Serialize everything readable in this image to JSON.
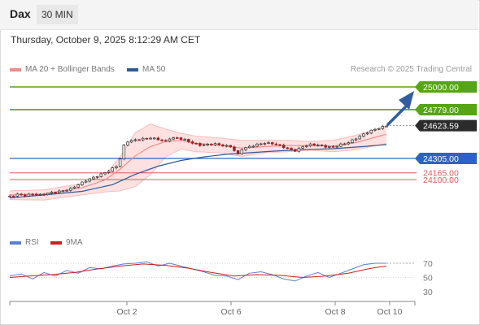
{
  "header": {
    "symbol": "Dax",
    "timeframe": "30 MIN"
  },
  "datetime": "Thursday, October 9, 2025 8:12:29 AM CET",
  "legend": {
    "ma20_label": "MA 20 + Bollinger Bands",
    "ma50_label": "MA 50",
    "rsi_label": "RSI",
    "ma9_label": "9MA"
  },
  "research": "Research © 2025 Trading Central",
  "colors": {
    "green": "#55a516",
    "blue": "#2d63c8",
    "red": "#e05a5a",
    "current": "#2b2b2b",
    "arrow": "#2f5d9e",
    "band": "#fde1e1",
    "candle_up": "#2a2a2a",
    "candle_down": "#9a2020",
    "rsi": "#5a7fd6",
    "ma9": "#d01c1c"
  },
  "chart_data": [
    {
      "type": "candlestick",
      "price_range": [
        23900,
        25050
      ],
      "levels": [
        {
          "value": 25000.0,
          "label": "25000.00",
          "kind": "resistance"
        },
        {
          "value": 24779.0,
          "label": "24779.00",
          "kind": "resistance"
        },
        {
          "value": 24623.59,
          "label": "24623.59",
          "kind": "current"
        },
        {
          "value": 24305.0,
          "label": "24305.00",
          "kind": "support"
        },
        {
          "value": 24165.0,
          "label": "24165.00",
          "kind": "support"
        },
        {
          "value": 24100.0,
          "label": "24100.00",
          "kind": "support"
        }
      ],
      "x_ticks": [
        "Oct 2",
        "Oct 6",
        "Oct 8",
        "Oct 10"
      ],
      "close_path": [
        [
          1,
          23935
        ],
        [
          3,
          23955
        ],
        [
          5,
          23945
        ],
        [
          7,
          23960
        ],
        [
          9,
          23950
        ],
        [
          11,
          23965
        ],
        [
          13,
          23980
        ],
        [
          15,
          23990
        ],
        [
          17,
          24010
        ],
        [
          19,
          24050
        ],
        [
          21,
          24090
        ],
        [
          23,
          24120
        ],
        [
          25,
          24150
        ],
        [
          27,
          24185
        ],
        [
          29,
          24230
        ],
        [
          30,
          24300
        ],
        [
          31,
          24430
        ],
        [
          32,
          24470
        ],
        [
          34,
          24485
        ],
        [
          36,
          24495
        ],
        [
          38,
          24505
        ],
        [
          40,
          24490
        ],
        [
          42,
          24470
        ],
        [
          43,
          24500
        ],
        [
          45,
          24505
        ],
        [
          47,
          24485
        ],
        [
          49,
          24455
        ],
        [
          51,
          24435
        ],
        [
          53,
          24440
        ],
        [
          55,
          24445
        ],
        [
          57,
          24430
        ],
        [
          59,
          24420
        ],
        [
          61,
          24345
        ],
        [
          62,
          24395
        ],
        [
          64,
          24420
        ],
        [
          66,
          24440
        ],
        [
          68,
          24455
        ],
        [
          70,
          24450
        ],
        [
          72,
          24430
        ],
        [
          74,
          24400
        ],
        [
          76,
          24380
        ],
        [
          78,
          24420
        ],
        [
          80,
          24440
        ],
        [
          82,
          24435
        ],
        [
          84,
          24420
        ],
        [
          86,
          24415
        ],
        [
          88,
          24440
        ],
        [
          90,
          24460
        ],
        [
          92,
          24500
        ],
        [
          94,
          24540
        ],
        [
          96,
          24575
        ],
        [
          98,
          24600
        ],
        [
          100,
          24623
        ]
      ],
      "ma20_path": [
        [
          1,
          23950
        ],
        [
          10,
          23960
        ],
        [
          20,
          24020
        ],
        [
          26,
          24095
        ],
        [
          30,
          24200
        ],
        [
          34,
          24330
        ],
        [
          38,
          24420
        ],
        [
          42,
          24470
        ],
        [
          46,
          24480
        ],
        [
          50,
          24450
        ],
        [
          56,
          24435
        ],
        [
          62,
          24405
        ],
        [
          68,
          24420
        ],
        [
          74,
          24430
        ],
        [
          80,
          24430
        ],
        [
          86,
          24425
        ],
        [
          92,
          24460
        ],
        [
          100,
          24540
        ]
      ],
      "ma50_path": [
        [
          1,
          23920
        ],
        [
          10,
          23950
        ],
        [
          20,
          23985
        ],
        [
          28,
          24050
        ],
        [
          34,
          24150
        ],
        [
          40,
          24230
        ],
        [
          46,
          24285
        ],
        [
          52,
          24320
        ],
        [
          58,
          24345
        ],
        [
          64,
          24360
        ],
        [
          70,
          24375
        ],
        [
          78,
          24390
        ],
        [
          86,
          24400
        ],
        [
          94,
          24420
        ],
        [
          100,
          24440
        ]
      ],
      "bb_upper": [
        [
          1,
          23990
        ],
        [
          10,
          24000
        ],
        [
          20,
          24060
        ],
        [
          26,
          24140
        ],
        [
          30,
          24320
        ],
        [
          34,
          24555
        ],
        [
          38,
          24640
        ],
        [
          42,
          24590
        ],
        [
          46,
          24550
        ],
        [
          50,
          24520
        ],
        [
          56,
          24505
        ],
        [
          62,
          24480
        ],
        [
          68,
          24480
        ],
        [
          74,
          24480
        ],
        [
          80,
          24470
        ],
        [
          86,
          24480
        ],
        [
          92,
          24530
        ],
        [
          100,
          24620
        ]
      ],
      "bb_lower": [
        [
          1,
          23905
        ],
        [
          10,
          23900
        ],
        [
          20,
          23950
        ],
        [
          26,
          23980
        ],
        [
          30,
          23990
        ],
        [
          34,
          24030
        ],
        [
          38,
          24150
        ],
        [
          42,
          24320
        ],
        [
          46,
          24395
        ],
        [
          50,
          24370
        ],
        [
          56,
          24360
        ],
        [
          62,
          24325
        ],
        [
          68,
          24360
        ],
        [
          74,
          24370
        ],
        [
          80,
          24385
        ],
        [
          86,
          24370
        ],
        [
          92,
          24390
        ],
        [
          100,
          24450
        ]
      ]
    },
    {
      "type": "line",
      "name": "RSI",
      "ylim": [
        20,
        80
      ],
      "y_ticks": [
        70,
        50,
        30
      ],
      "rsi_path": [
        [
          1,
          52
        ],
        [
          4,
          55
        ],
        [
          7,
          48
        ],
        [
          10,
          57
        ],
        [
          13,
          52
        ],
        [
          16,
          60
        ],
        [
          19,
          56
        ],
        [
          22,
          64
        ],
        [
          25,
          62
        ],
        [
          28,
          66
        ],
        [
          31,
          69
        ],
        [
          34,
          70
        ],
        [
          37,
          72
        ],
        [
          40,
          66
        ],
        [
          43,
          70
        ],
        [
          46,
          66
        ],
        [
          49,
          62
        ],
        [
          52,
          58
        ],
        [
          55,
          53
        ],
        [
          58,
          52
        ],
        [
          61,
          47
        ],
        [
          64,
          56
        ],
        [
          67,
          58
        ],
        [
          70,
          54
        ],
        [
          73,
          48
        ],
        [
          76,
          45
        ],
        [
          79,
          52
        ],
        [
          82,
          57
        ],
        [
          85,
          50
        ],
        [
          88,
          56
        ],
        [
          91,
          62
        ],
        [
          94,
          68
        ],
        [
          97,
          70
        ],
        [
          100,
          70
        ]
      ],
      "ma9_path": [
        [
          1,
          50
        ],
        [
          6,
          52
        ],
        [
          12,
          54
        ],
        [
          18,
          57
        ],
        [
          24,
          62
        ],
        [
          30,
          66
        ],
        [
          36,
          69
        ],
        [
          42,
          67
        ],
        [
          48,
          63
        ],
        [
          54,
          57
        ],
        [
          60,
          52
        ],
        [
          66,
          54
        ],
        [
          72,
          53
        ],
        [
          78,
          50
        ],
        [
          84,
          52
        ],
        [
          90,
          56
        ],
        [
          96,
          63
        ],
        [
          100,
          66
        ]
      ]
    }
  ]
}
